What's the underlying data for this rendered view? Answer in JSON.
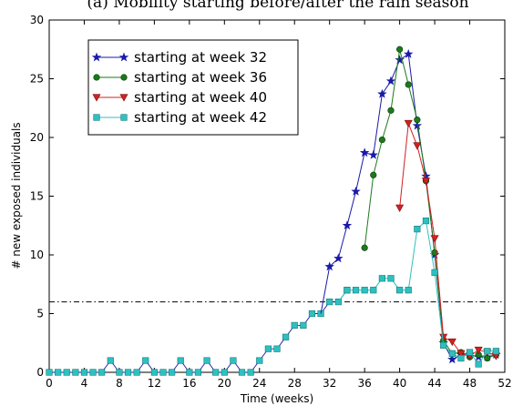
{
  "chart_data": {
    "type": "line",
    "title": "(a) Mobility starting before/after the rain season",
    "xlabel": "Time (weeks)",
    "ylabel": "# new exposed individuals",
    "xlim": [
      0,
      52
    ],
    "ylim": [
      0,
      30
    ],
    "x_ticks": [
      0,
      4,
      8,
      12,
      16,
      20,
      24,
      28,
      32,
      36,
      40,
      44,
      48,
      52
    ],
    "y_ticks": [
      0,
      5,
      10,
      15,
      20,
      25,
      30
    ],
    "grid": false,
    "legend_position": "upper left",
    "threshold_line": {
      "y": 6,
      "style": "dash-dot",
      "color": "#000000"
    },
    "baseline": {
      "x": [
        0,
        1,
        2,
        3,
        4,
        5,
        6,
        7,
        8,
        9,
        10,
        11,
        12,
        13,
        14,
        15,
        16,
        17,
        18,
        19,
        20,
        21,
        22,
        23,
        24,
        25,
        26,
        27,
        28,
        29,
        30,
        31,
        32,
        33,
        34
      ],
      "values": [
        0,
        0,
        0,
        0,
        0,
        0,
        0,
        1,
        0,
        0,
        0,
        1,
        0,
        0,
        0,
        1,
        0,
        0,
        1,
        0,
        0,
        1,
        0,
        0,
        1,
        2,
        2,
        3,
        4,
        4,
        5,
        5,
        6,
        6,
        7
      ]
    },
    "series": [
      {
        "name": "starting at week 32",
        "color": "#1a1aa8",
        "marker": "star",
        "x": [
          32,
          33,
          34,
          35,
          36,
          37,
          38,
          39,
          40,
          41,
          42,
          43,
          44,
          45,
          46,
          47,
          48,
          49,
          50,
          51
        ],
        "values": [
          9,
          9.7,
          12.5,
          15.4,
          18.7,
          18.5,
          23.7,
          24.8,
          26.6,
          27.1,
          21,
          16.7,
          10,
          2.5,
          1.1,
          1.5,
          1.5,
          1.3,
          1.3,
          1.5
        ]
      },
      {
        "name": "starting at week 36",
        "color": "#1b7a1b",
        "marker": "circle",
        "x": [
          36,
          37,
          38,
          39,
          40,
          41,
          42,
          43,
          44,
          45,
          46,
          47,
          48,
          49,
          50,
          51
        ],
        "values": [
          10.6,
          16.8,
          19.8,
          22.3,
          27.5,
          24.5,
          21.5,
          16.3,
          10.2,
          2.7,
          1.6,
          1.7,
          1.3,
          1.5,
          1.2,
          1.5
        ]
      },
      {
        "name": "starting at week 40",
        "color": "#d42020",
        "marker": "triangle-down",
        "x": [
          40,
          41,
          42,
          43,
          44,
          45,
          46,
          47,
          48,
          49,
          50,
          51
        ],
        "values": [
          14,
          21.2,
          19.3,
          16.3,
          11.4,
          3,
          2.6,
          1.6,
          1.4,
          1.9,
          1.7,
          1.4
        ]
      },
      {
        "name": "starting at week 42",
        "color": "#2ec0c0",
        "marker": "square",
        "x": [
          34,
          35,
          36,
          37,
          38,
          39,
          40,
          41,
          42,
          43,
          44,
          45,
          46,
          47,
          48,
          49,
          50,
          51
        ],
        "values": [
          7,
          7,
          7,
          7,
          8,
          8,
          7,
          7,
          12.2,
          12.9,
          8.5,
          2.3,
          1.6,
          1.2,
          1.7,
          0.7,
          1.8,
          1.8
        ]
      }
    ]
  }
}
